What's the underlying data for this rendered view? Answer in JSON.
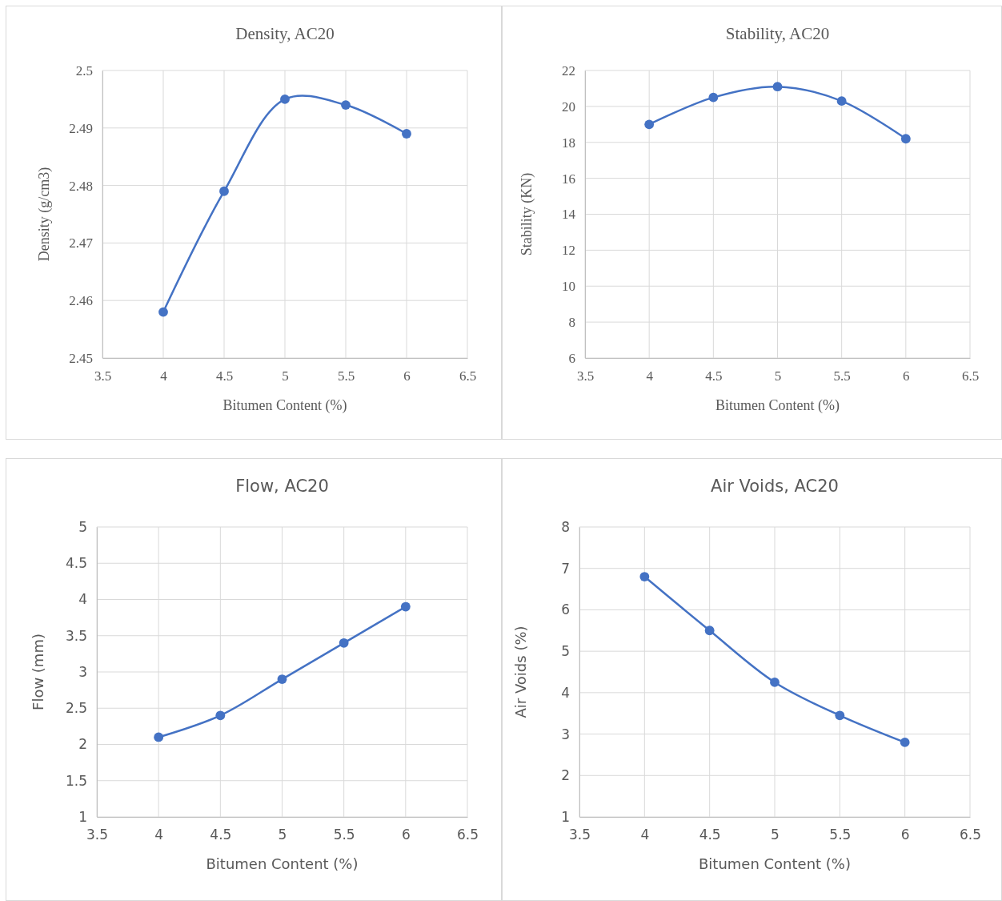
{
  "chart_data": [
    {
      "type": "line",
      "title": "Density, AC20",
      "xlabel": "Bitumen Content (%)",
      "ylabel": "Density (g/cm3)",
      "x": [
        4,
        4.5,
        5,
        5.5,
        6
      ],
      "series": [
        {
          "color": "#4472c4",
          "values": [
            2.458,
            2.479,
            2.495,
            2.494,
            2.489
          ]
        }
      ],
      "xlim": [
        3.5,
        6.5
      ],
      "xticks": [
        3.5,
        4,
        4.5,
        5,
        5.5,
        6,
        6.5
      ],
      "ylim": [
        2.45,
        2.5
      ],
      "yticks": [
        2.45,
        2.46,
        2.47,
        2.48,
        2.49,
        2.5
      ],
      "grid": true,
      "marker": "circle",
      "line_style": "solid"
    },
    {
      "type": "line",
      "title": "Stability, AC20",
      "xlabel": "Bitumen Content (%)",
      "ylabel": "Stability (KN)",
      "x": [
        4,
        4.5,
        5,
        5.5,
        6
      ],
      "series": [
        {
          "color": "#4472c4",
          "values": [
            19.0,
            20.5,
            21.1,
            20.3,
            18.2
          ]
        }
      ],
      "xlim": [
        3.5,
        6.5
      ],
      "xticks": [
        3.5,
        4,
        4.5,
        5,
        5.5,
        6,
        6.5
      ],
      "ylim": [
        6,
        22
      ],
      "yticks": [
        6,
        8,
        10,
        12,
        14,
        16,
        18,
        20,
        22
      ],
      "grid": true,
      "marker": "circle",
      "line_style": "solid"
    },
    {
      "type": "line",
      "title": "Flow, AC20",
      "xlabel": "Bitumen Content (%)",
      "ylabel": "Flow (mm)",
      "x": [
        4,
        4.5,
        5,
        5.5,
        6
      ],
      "series": [
        {
          "color": "#4472c4",
          "values": [
            2.1,
            2.4,
            2.9,
            3.4,
            3.9
          ]
        }
      ],
      "xlim": [
        3.5,
        6.5
      ],
      "xticks": [
        3.5,
        4,
        4.5,
        5,
        5.5,
        6,
        6.5
      ],
      "ylim": [
        1,
        5
      ],
      "yticks": [
        1,
        1.5,
        2,
        2.5,
        3,
        3.5,
        4,
        4.5,
        5
      ],
      "grid": true,
      "marker": "circle",
      "line_style": "solid"
    },
    {
      "type": "line",
      "title": "Air Voids, AC20",
      "xlabel": "Bitumen Content (%)",
      "ylabel": "Air Voids (%)",
      "x": [
        4,
        4.5,
        5,
        5.5,
        6
      ],
      "series": [
        {
          "color": "#4472c4",
          "values": [
            6.8,
            5.5,
            4.25,
            3.45,
            2.8
          ]
        }
      ],
      "xlim": [
        3.5,
        6.5
      ],
      "xticks": [
        3.5,
        4,
        4.5,
        5,
        5.5,
        6,
        6.5
      ],
      "ylim": [
        1,
        8
      ],
      "yticks": [
        1,
        2,
        3,
        4,
        5,
        6,
        7,
        8
      ],
      "grid": true,
      "marker": "circle",
      "line_style": "solid"
    }
  ]
}
